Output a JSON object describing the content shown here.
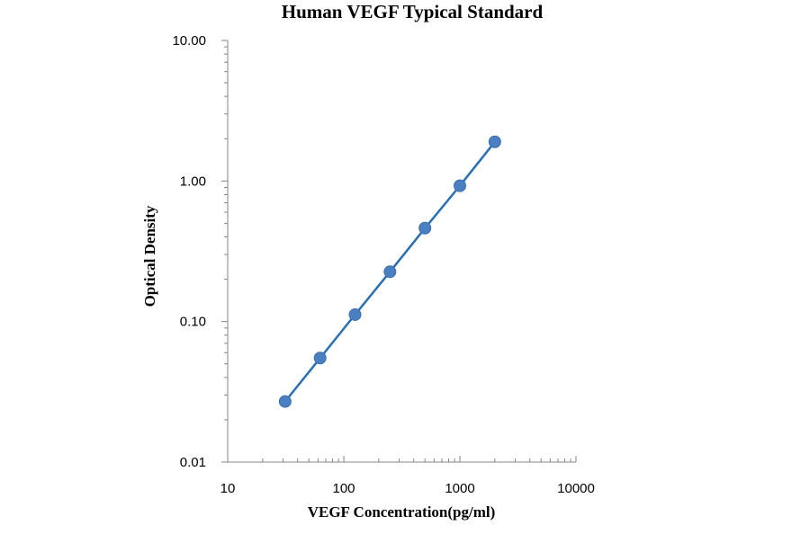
{
  "chart_data": {
    "type": "scatter",
    "title": "Human VEGF Typical Standard",
    "xlabel": "VEGF Concentration(pg/ml)",
    "ylabel": "Optical Density",
    "x_scale": "log",
    "y_scale": "log",
    "xlim": [
      10,
      10000
    ],
    "ylim": [
      0.01,
      10
    ],
    "x_ticks": [
      "10",
      "100",
      "1000",
      "10000"
    ],
    "y_ticks": [
      "0.01",
      "0.10",
      "1.00",
      "10.00"
    ],
    "grid": false,
    "legend": "none",
    "series": [
      {
        "x": [
          31.25,
          62.5,
          125,
          250,
          500,
          1000,
          2000
        ],
        "y": [
          0.027,
          0.055,
          0.112,
          0.226,
          0.462,
          0.925,
          1.9
        ],
        "connected": true
      }
    ],
    "colors": {
      "marker": "#4a7fc1",
      "line": "#2a6fb5",
      "axis": "#868686"
    }
  }
}
